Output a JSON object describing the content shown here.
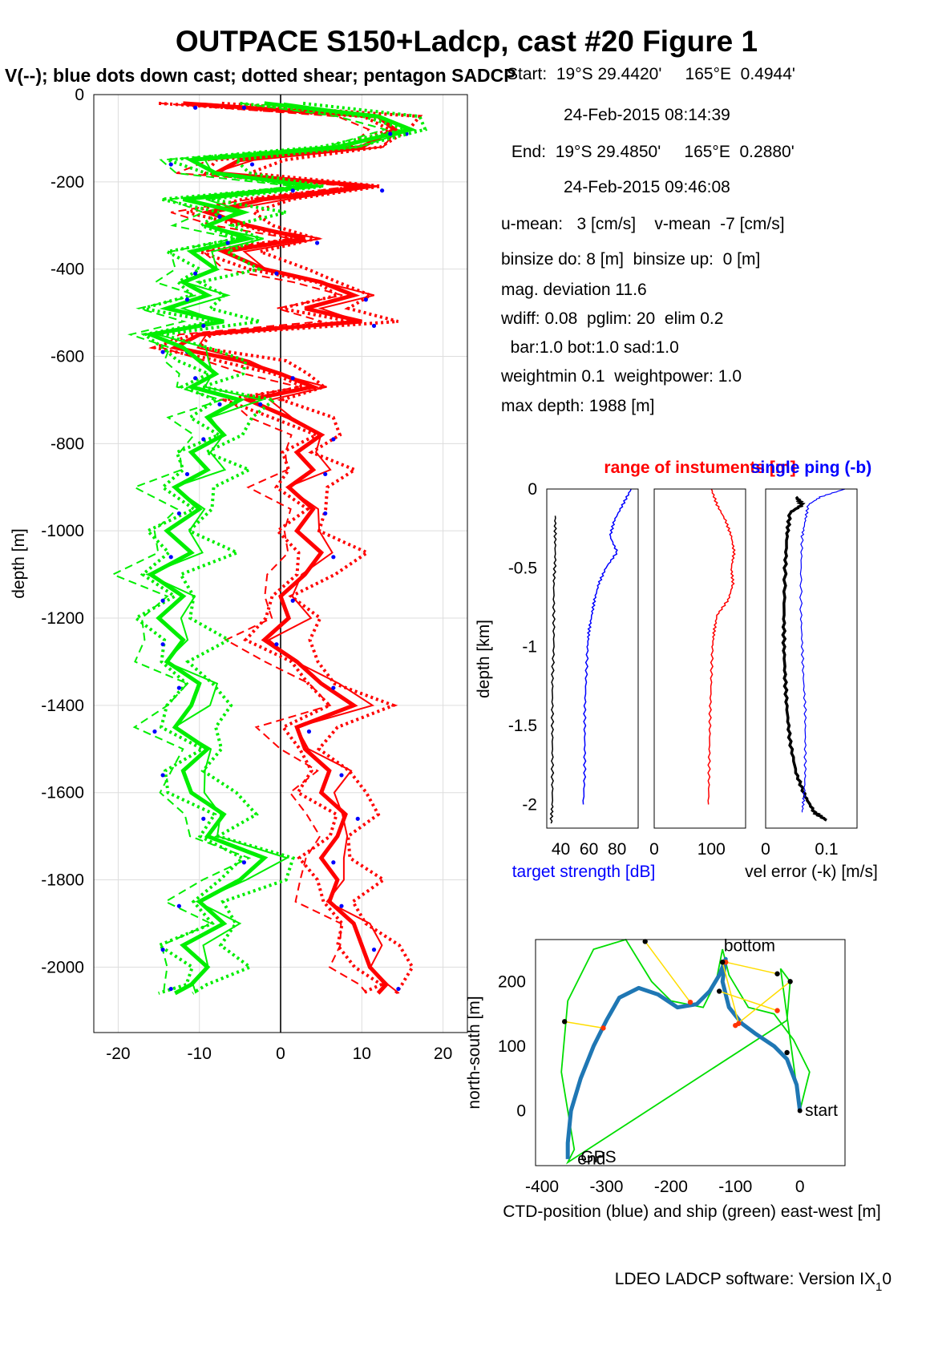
{
  "figure": {
    "title": "OUTPACE S150+Ladcp, cast #20  Figure 1",
    "subtitle": "V(--); blue dots down cast; dotted shear; pentagon SADCP",
    "footer": "LDEO LADCP software: Version IX",
    "footer_sub": "1",
    "footer_tail": "0"
  },
  "info": [
    "Start:  19°S 29.4420'     165°E  0.4944'",
    "24-Feb-2015 08:14:39",
    " End:  19°S 29.4850'     165°E  0.2880'",
    "24-Feb-2015 09:46:08",
    "u-mean:   3 [cm/s]    v-mean  -7 [cm/s]",
    "binsize do: 8 [m]  binsize up:  0 [m]",
    "mag. deviation 11.6",
    "wdiff: 0.08  pglim: 20  elim 0.2",
    "  bar:1.0 bot:1.0 sad:1.0",
    "weightmin 0.1  weightpower: 1.0",
    "max depth: 1988 [m]"
  ],
  "colors": {
    "u": "#ff0000",
    "v": "#00ee00",
    "dots": "#0000ff",
    "ts": "#0000ff",
    "range": "#ff0000",
    "ship": "#00dd00",
    "ctd": "#1f77b4",
    "links": "#ffdd00"
  },
  "chart_data": [
    {
      "type": "line",
      "id": "velocity-profile",
      "ylabel": "depth [m]",
      "xlim": [
        -23,
        23
      ],
      "ylim": [
        -2150,
        0
      ],
      "xticks": [
        -20,
        -10,
        0,
        10,
        20
      ],
      "yticks": [
        0,
        -200,
        -400,
        -600,
        -800,
        -1000,
        -1200,
        -1400,
        -1600,
        -1800,
        -2000
      ],
      "grid": true,
      "series": [
        {
          "key": "u",
          "depth": [
            -20,
            -50,
            -80,
            -120,
            -150,
            -180,
            -210,
            -240,
            -270,
            -300,
            -330,
            -360,
            -400,
            -430,
            -460,
            -490,
            -520,
            -550,
            -580,
            -610,
            -640,
            -670,
            -700,
            -740,
            -780,
            -820,
            -860,
            -900,
            -950,
            -1000,
            -1050,
            -1100,
            -1150,
            -1200,
            -1250,
            -1300,
            -1350,
            -1400,
            -1450,
            -1500,
            -1550,
            -1600,
            -1650,
            -1700,
            -1750,
            -1800,
            -1850,
            -1900,
            -1950,
            -2000,
            -2040,
            -2060
          ],
          "values": [
            -12,
            12,
            14,
            10,
            -5,
            -8,
            11,
            -2,
            -9,
            -4,
            3,
            -7,
            -2,
            5,
            9,
            3,
            10,
            -10,
            -13,
            -5,
            0,
            4,
            -4,
            1,
            5,
            2,
            4,
            1,
            4,
            2,
            5,
            3,
            0,
            1,
            -2,
            2,
            5,
            9,
            2,
            3,
            6,
            5,
            8,
            7,
            5,
            7,
            6,
            9,
            10,
            11,
            13,
            12
          ]
        },
        {
          "key": "v",
          "depth": [
            -20,
            -50,
            -80,
            -120,
            -150,
            -180,
            -210,
            -240,
            -270,
            -300,
            -330,
            -360,
            -400,
            -430,
            -460,
            -490,
            -520,
            -550,
            -580,
            -610,
            -640,
            -670,
            -700,
            -740,
            -780,
            -820,
            -860,
            -900,
            -950,
            -1000,
            -1050,
            -1100,
            -1150,
            -1200,
            -1250,
            -1300,
            -1350,
            -1400,
            -1450,
            -1500,
            -1550,
            -1600,
            -1650,
            -1700,
            -1750,
            -1800,
            -1850,
            -1900,
            -1950,
            -2000,
            -2040,
            -2060
          ],
          "values": [
            -2,
            12,
            16,
            7,
            -11,
            -8,
            4,
            -12,
            -5,
            -9,
            -4,
            -11,
            -8,
            -12,
            -9,
            -14,
            -7,
            -16,
            -12,
            -10,
            -8,
            -11,
            -5,
            -9,
            -7,
            -11,
            -9,
            -13,
            -10,
            -14,
            -11,
            -16,
            -12,
            -15,
            -12,
            -14,
            -10,
            -11,
            -13,
            -9,
            -12,
            -11,
            -7,
            -9,
            -2,
            -5,
            -10,
            -7,
            -12,
            -9,
            -11,
            -13
          ]
        }
      ]
    },
    {
      "type": "line",
      "id": "target-strength",
      "xlabel": "target strength [dB]",
      "ylabel": "depth [km]",
      "xlim": [
        30,
        95
      ],
      "ylim": [
        -2.15,
        0
      ],
      "xticks": [
        40,
        60,
        80
      ],
      "yticks": [
        0,
        -0.5,
        -1,
        -1.5,
        -2
      ],
      "series": [
        {
          "key": "ts_low",
          "depth": [
            -0.17,
            -0.3,
            -0.45,
            -0.6,
            -0.8,
            -1.0,
            -1.2,
            -1.4,
            -1.6,
            -1.8,
            -2.0,
            -2.12
          ],
          "values": [
            36,
            36,
            36,
            35,
            35,
            35,
            34,
            34,
            34,
            34,
            34,
            33
          ]
        },
        {
          "key": "ts_high",
          "depth": [
            0,
            -0.1,
            -0.2,
            -0.3,
            -0.4,
            -0.5,
            -0.6,
            -0.7,
            -0.8,
            -0.9,
            -1.0,
            -1.2,
            -1.4,
            -1.6,
            -1.8,
            -2.0
          ],
          "values": [
            90,
            84,
            78,
            75,
            80,
            72,
            67,
            64,
            62,
            60,
            59,
            58,
            57,
            57,
            57,
            56
          ]
        }
      ]
    },
    {
      "type": "line",
      "id": "range",
      "title": "range of instuments [m]",
      "xlim": [
        0,
        160
      ],
      "ylim": [
        -2.15,
        0
      ],
      "xticks": [
        0,
        100
      ],
      "series": [
        {
          "key": "range",
          "depth": [
            0,
            -0.1,
            -0.2,
            -0.3,
            -0.4,
            -0.5,
            -0.6,
            -0.7,
            -0.8,
            -0.9,
            -1.0,
            -1.2,
            -1.4,
            -1.6,
            -1.8,
            -2.0
          ],
          "values": [
            100,
            110,
            125,
            135,
            140,
            135,
            138,
            130,
            110,
            105,
            102,
            100,
            98,
            97,
            96,
            95
          ]
        }
      ]
    },
    {
      "type": "line",
      "id": "vel-error",
      "title": "single ping (-b)",
      "xlabel": "vel error (-k) [m/s]",
      "xlim": [
        0,
        0.15
      ],
      "ylim": [
        -2.15,
        0
      ],
      "xticks": [
        0,
        0.1
      ],
      "series": [
        {
          "key": "err_k",
          "depth": [
            -0.05,
            -0.1,
            -0.15,
            -0.3,
            -0.5,
            -0.8,
            -1.0,
            -1.2,
            -1.4,
            -1.6,
            -1.8,
            -1.95,
            -2.05,
            -2.1
          ],
          "values": [
            0.05,
            0.06,
            0.04,
            0.035,
            0.032,
            0.03,
            0.03,
            0.032,
            0.035,
            0.04,
            0.05,
            0.065,
            0.08,
            0.1
          ]
        },
        {
          "key": "err_b",
          "depth": [
            0,
            -0.05,
            -0.1,
            -0.2,
            -0.3,
            -0.5,
            -0.8,
            -1.0,
            -1.2,
            -1.4,
            -1.6,
            -1.8,
            -1.95,
            -2.05
          ],
          "values": [
            0.13,
            0.09,
            0.07,
            0.065,
            0.06,
            0.058,
            0.058,
            0.06,
            0.062,
            0.065,
            0.065,
            0.065,
            0.063,
            0.06
          ]
        }
      ]
    },
    {
      "type": "line",
      "id": "position",
      "xlabel": "CTD-position (blue) and ship (green) east-west [m]",
      "ylabel": "north-south [m]",
      "xlim": [
        -410,
        70
      ],
      "ylim": [
        -85,
        265
      ],
      "xticks": [
        -400,
        -300,
        -200,
        -100,
        0
      ],
      "yticks": [
        0,
        100,
        200
      ],
      "labels": [
        "bottom",
        "start",
        "end",
        "GPS"
      ],
      "series": [
        {
          "key": "ctd",
          "x": [
            0,
            -5,
            -20,
            -40,
            -70,
            -90,
            -110,
            -120,
            -115,
            -125,
            -140,
            -160,
            -190,
            -220,
            -250,
            -280,
            -300,
            -320,
            -340,
            -355,
            -360,
            -360
          ],
          "y": [
            0,
            40,
            80,
            100,
            120,
            135,
            160,
            200,
            235,
            210,
            185,
            165,
            160,
            180,
            190,
            175,
            140,
            100,
            50,
            0,
            -50,
            -75
          ]
        },
        {
          "key": "ship",
          "x": [
            0,
            15,
            -10,
            -40,
            -80,
            -110,
            -120,
            -130,
            -150,
            -200,
            -230,
            -270,
            -320,
            -360,
            -370,
            -360,
            -350,
            -360,
            -20,
            -15,
            -30,
            0
          ],
          "y": [
            0,
            60,
            110,
            150,
            160,
            210,
            250,
            200,
            160,
            170,
            200,
            265,
            250,
            170,
            60,
            0,
            -60,
            -80,
            140,
            200,
            220,
            0
          ]
        },
        {
          "key": "links",
          "x": [
            -35,
            -115,
            -15,
            -100,
            -125,
            -35,
            -120,
            -95,
            -240,
            -170,
            -365,
            -305,
            -20
          ],
          "y": [
            212,
            230,
            200,
            132,
            185,
            155,
            230,
            135,
            262,
            168,
            138,
            128,
            90
          ]
        }
      ]
    }
  ]
}
